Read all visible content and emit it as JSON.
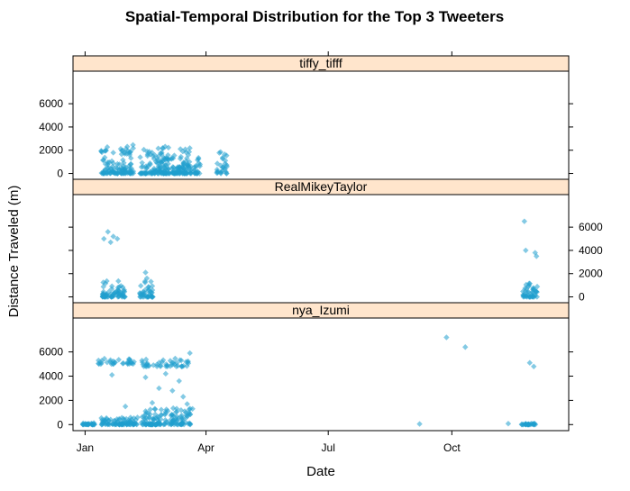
{
  "colors": {
    "point": "#1f9ece",
    "strip_fill": "#ffe5cc",
    "frame": "#000000"
  },
  "chart_data": {
    "type": "scatter",
    "title": "Spatial-Temporal Distribution for the Top 3 Tweeters",
    "xlabel": "Date",
    "ylabel": "Distance Traveled (m)",
    "x_units": "day of year",
    "xlim": [
      -9,
      360
    ],
    "x_ticks": [
      {
        "label": "Jan",
        "value": 0
      },
      {
        "label": "Apr",
        "value": 90
      },
      {
        "label": "Jul",
        "value": 181
      },
      {
        "label": "Oct",
        "value": 273
      }
    ],
    "ylim": [
      -500,
      8800
    ],
    "y_ticks": [
      0,
      2000,
      4000,
      6000
    ],
    "marker": "filled diamond, semi-transparent",
    "panels": [
      {
        "name": "tiffy_tifff",
        "y_axis_side": "left",
        "clusters": [
          {
            "x_range": [
              12,
              36
            ],
            "y_range": [
              0,
              2500
            ],
            "count": 120
          },
          {
            "x_range": [
              41,
              63
            ],
            "y_range": [
              0,
              2400
            ],
            "count": 130
          },
          {
            "x_range": [
              64,
              79
            ],
            "y_range": [
              0,
              2200
            ],
            "count": 90
          },
          {
            "x_range": [
              81,
              86
            ],
            "y_range": [
              0,
              2100
            ],
            "count": 22
          },
          {
            "x_range": [
              98,
              106
            ],
            "y_range": [
              0,
              2000
            ],
            "count": 28
          }
        ]
      },
      {
        "name": "RealMikeyTaylor",
        "y_axis_side": "right",
        "clusters": [
          {
            "x_range": [
              13,
              30
            ],
            "y_range": [
              0,
              1500
            ],
            "count": 70
          },
          {
            "x_range": [
              40,
              51
            ],
            "y_range": [
              0,
              1500
            ],
            "count": 40
          },
          {
            "x_range": [
              326,
              337
            ],
            "y_range": [
              0,
              1200
            ],
            "count": 45
          }
        ],
        "points": [
          {
            "x": 14,
            "y": 5000
          },
          {
            "x": 17,
            "y": 5600
          },
          {
            "x": 19,
            "y": 4700
          },
          {
            "x": 21,
            "y": 5200
          },
          {
            "x": 24,
            "y": 5000
          },
          {
            "x": 45,
            "y": 2100
          },
          {
            "x": 46,
            "y": 1600
          },
          {
            "x": 327,
            "y": 6500
          },
          {
            "x": 328,
            "y": 4000
          },
          {
            "x": 335,
            "y": 3800
          },
          {
            "x": 336,
            "y": 3500
          }
        ]
      },
      {
        "name": "nya_Izumi",
        "y_axis_side": "left",
        "clusters": [
          {
            "x_range": [
              -2,
              7
            ],
            "y_range": [
              0,
              150
            ],
            "count": 30
          },
          {
            "x_range": [
              12,
              39
            ],
            "y_range": [
              0,
              600
            ],
            "count": 90
          },
          {
            "x_range": [
              42,
              79
            ],
            "y_range": [
              0,
              1400
            ],
            "count": 150
          },
          {
            "x_range": [
              8,
              37
            ],
            "y_range": [
              5000,
              5500
            ],
            "count": 30
          },
          {
            "x_range": [
              42,
              77
            ],
            "y_range": [
              4800,
              5500
            ],
            "count": 45
          },
          {
            "x_range": [
              325,
              336
            ],
            "y_range": [
              0,
              100
            ],
            "count": 30
          }
        ],
        "points": [
          {
            "x": 10,
            "y": 5300
          },
          {
            "x": 20,
            "y": 4100
          },
          {
            "x": 30,
            "y": 1500
          },
          {
            "x": 45,
            "y": 3900
          },
          {
            "x": 50,
            "y": 1800
          },
          {
            "x": 55,
            "y": 3000
          },
          {
            "x": 60,
            "y": 4200
          },
          {
            "x": 65,
            "y": 2800
          },
          {
            "x": 70,
            "y": 3600
          },
          {
            "x": 73,
            "y": 2300
          },
          {
            "x": 76,
            "y": 1700
          },
          {
            "x": 78,
            "y": 5900
          },
          {
            "x": 80,
            "y": 1300
          },
          {
            "x": 249,
            "y": 50
          },
          {
            "x": 269,
            "y": 7200
          },
          {
            "x": 283,
            "y": 6400
          },
          {
            "x": 315,
            "y": 80
          },
          {
            "x": 331,
            "y": 5100
          },
          {
            "x": 334,
            "y": 4800
          }
        ]
      }
    ]
  }
}
